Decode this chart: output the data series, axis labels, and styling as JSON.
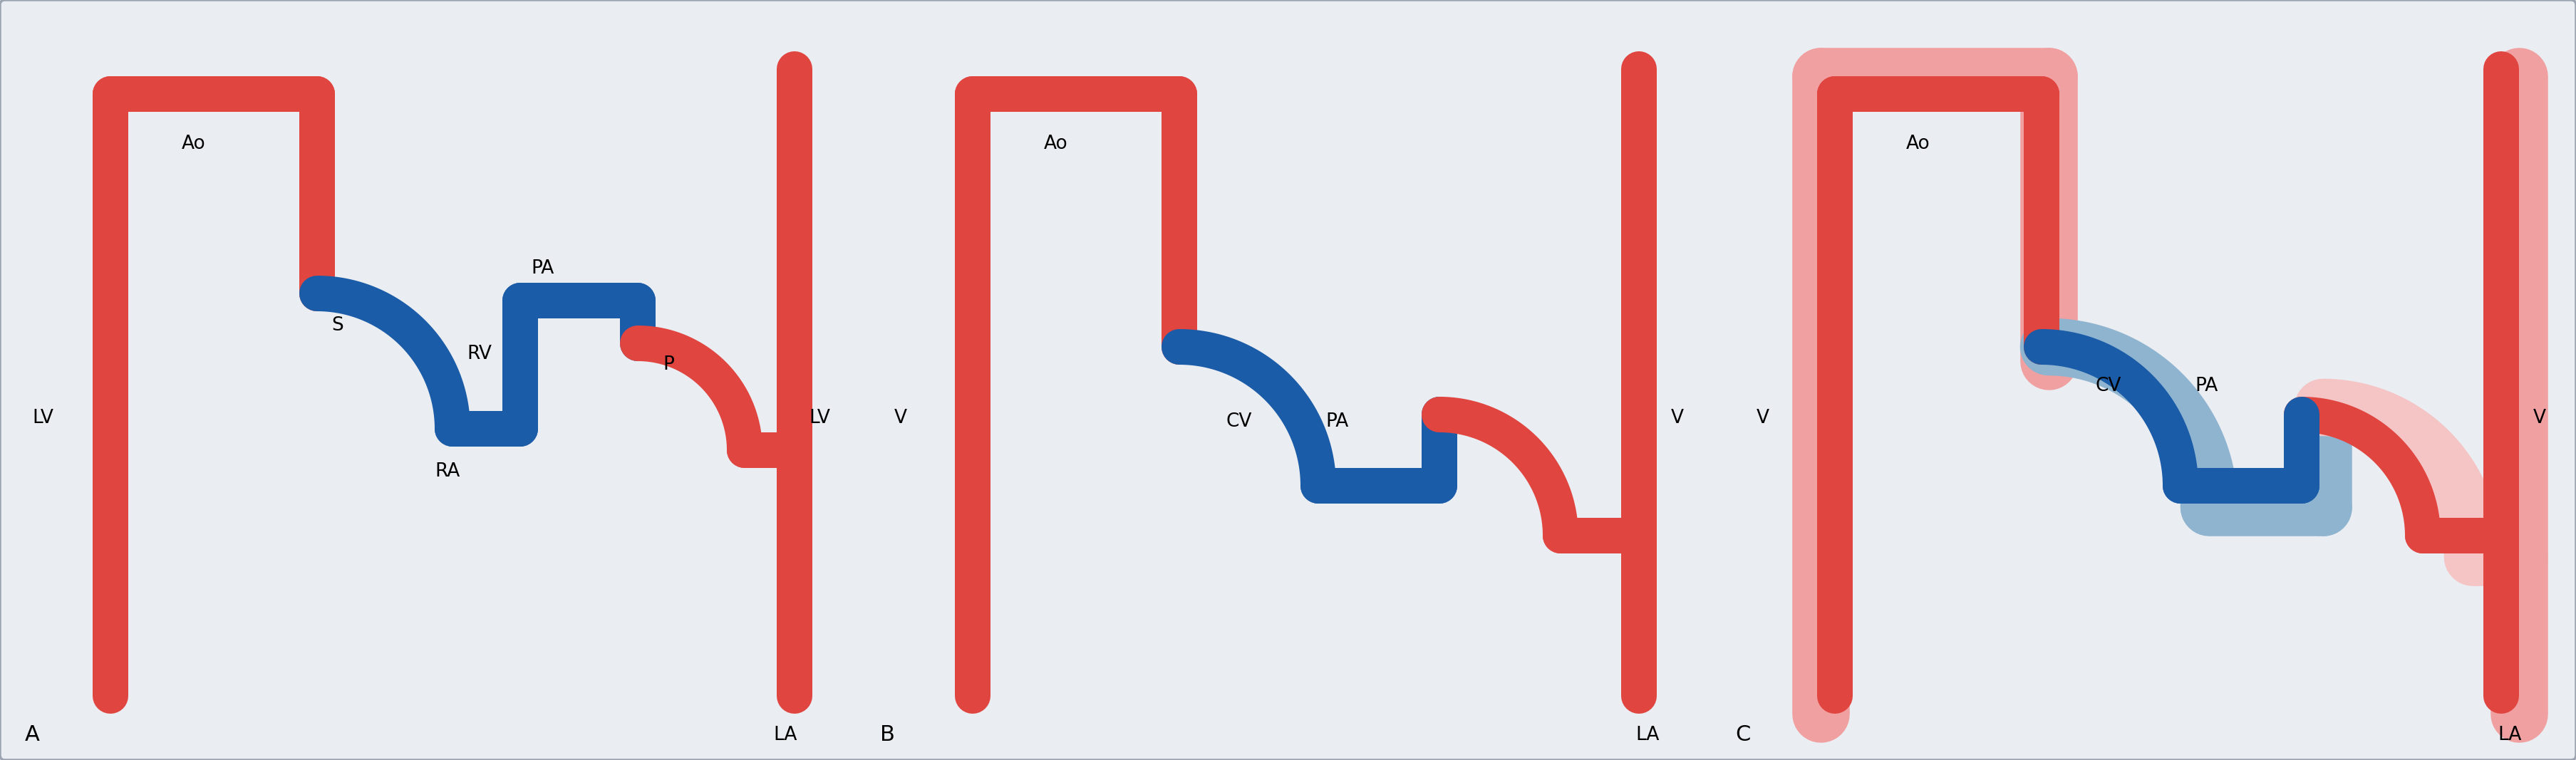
{
  "bg_color": "#eaedf2",
  "red": "#e04540",
  "red_light": "#f0a0a0",
  "red_lighter": "#f5c5c5",
  "blue": "#1a5ca8",
  "blue_light": "#6090b8",
  "blue_lighter": "#8fb4d0",
  "lw_red": 36,
  "lw_blue": 36,
  "lw_red_light": 58,
  "lw_blue_light": 58,
  "fs": 19,
  "fs_label": 22,
  "panel_a_labels": {
    "LV_left": [
      "LV",
      0.55,
      4.8
    ],
    "Ao": [
      "Ao",
      2.5,
      8.65
    ],
    "S": [
      "S",
      4.35,
      6.1
    ],
    "RV": [
      "RV",
      6.55,
      5.7
    ],
    "PA": [
      "PA",
      7.3,
      6.5
    ],
    "P": [
      "P",
      9.25,
      5.6
    ],
    "RA": [
      "RA",
      6.1,
      3.55
    ],
    "LV_right": [
      "LV",
      10.85,
      4.8
    ],
    "LA": [
      "LA",
      10.7,
      0.35
    ],
    "A": [
      "A",
      0.35,
      0.35
    ]
  },
  "panel_b_labels": {
    "V_left": [
      "V",
      12.6,
      4.8
    ],
    "Ao": [
      "Ao",
      14.6,
      8.65
    ],
    "CV": [
      "CV",
      17.1,
      4.8
    ],
    "PA": [
      "PA",
      18.3,
      4.8
    ],
    "V_right": [
      "V",
      22.85,
      4.8
    ],
    "LA": [
      "LA",
      22.7,
      0.35
    ],
    "B": [
      "B",
      12.35,
      0.35
    ]
  },
  "panel_c_labels": {
    "V_left": [
      "V",
      24.65,
      4.8
    ],
    "Ao": [
      "Ao",
      26.7,
      8.65
    ],
    "CV": [
      "CV",
      29.2,
      5.3
    ],
    "PA": [
      "PA",
      30.4,
      5.3
    ],
    "V_right": [
      "V",
      34.8,
      4.8
    ],
    "LA": [
      "LA",
      34.7,
      0.35
    ],
    "C": [
      "C",
      24.35,
      0.35
    ]
  }
}
